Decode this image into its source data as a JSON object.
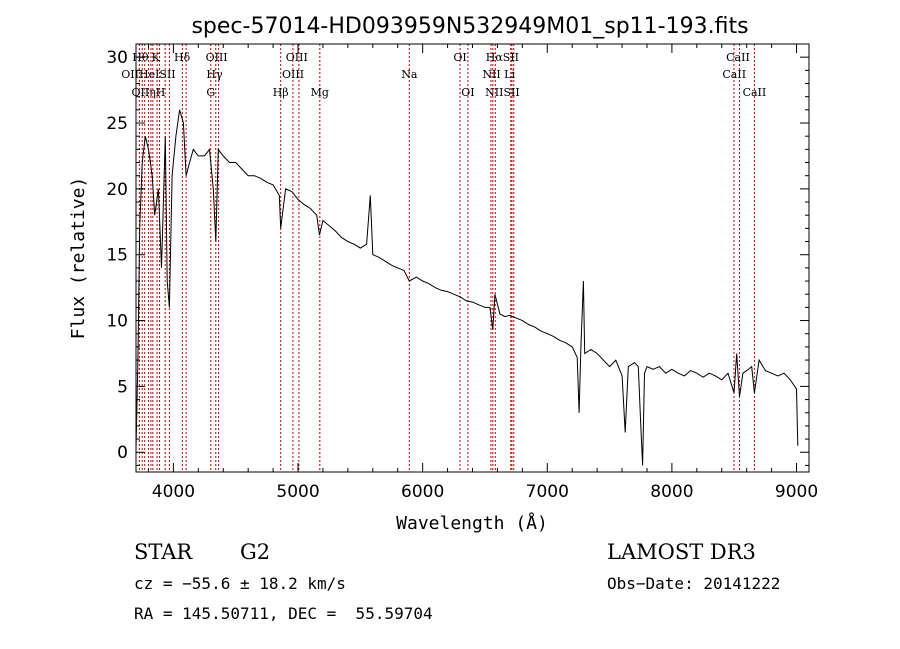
{
  "chart_data": {
    "type": "line",
    "title": "spec-57014-HD093959N532949M01_sp11-193.fits",
    "xlabel": "Wavelength (Å)",
    "ylabel": "Flux (relative)",
    "xlim": [
      3700,
      9100
    ],
    "ylim": [
      -1.5,
      31
    ],
    "xticks": [
      "4000",
      "5000",
      "6000",
      "7000",
      "8000",
      "9000"
    ],
    "xtick_values": [
      4000,
      5000,
      6000,
      7000,
      8000,
      9000
    ],
    "yticks": [
      "0",
      "5",
      "10",
      "15",
      "20",
      "25",
      "30"
    ],
    "ytick_values": [
      0,
      5,
      10,
      15,
      20,
      25,
      30
    ],
    "grid": false,
    "series": [
      {
        "points": [
          [
            3700,
            0.2
          ],
          [
            3715,
            7
          ],
          [
            3730,
            17
          ],
          [
            3750,
            22
          ],
          [
            3775,
            24
          ],
          [
            3800,
            23
          ],
          [
            3830,
            21
          ],
          [
            3850,
            18
          ],
          [
            3880,
            20
          ],
          [
            3905,
            14
          ],
          [
            3935,
            24
          ],
          [
            3950,
            13
          ],
          [
            3968,
            11
          ],
          [
            3990,
            21
          ],
          [
            4020,
            24
          ],
          [
            4050,
            26
          ],
          [
            4080,
            25
          ],
          [
            4102,
            21
          ],
          [
            4130,
            22
          ],
          [
            4160,
            23
          ],
          [
            4200,
            22.5
          ],
          [
            4250,
            22.5
          ],
          [
            4290,
            23
          ],
          [
            4320,
            20
          ],
          [
            4340,
            16
          ],
          [
            4360,
            23
          ],
          [
            4400,
            22.5
          ],
          [
            4450,
            22
          ],
          [
            4500,
            22
          ],
          [
            4550,
            21.5
          ],
          [
            4600,
            21
          ],
          [
            4650,
            21
          ],
          [
            4700,
            20.8
          ],
          [
            4750,
            20.5
          ],
          [
            4800,
            20.3
          ],
          [
            4850,
            19.5
          ],
          [
            4861,
            17
          ],
          [
            4900,
            20
          ],
          [
            4950,
            19.8
          ],
          [
            5000,
            19.2
          ],
          [
            5050,
            18.8
          ],
          [
            5100,
            18.5
          ],
          [
            5150,
            18
          ],
          [
            5172,
            16.5
          ],
          [
            5200,
            17.6
          ],
          [
            5250,
            17.2
          ],
          [
            5300,
            16.8
          ],
          [
            5350,
            16.3
          ],
          [
            5400,
            16
          ],
          [
            5450,
            15.8
          ],
          [
            5500,
            15.5
          ],
          [
            5550,
            15.8
          ],
          [
            5580,
            19.5
          ],
          [
            5600,
            15
          ],
          [
            5650,
            14.8
          ],
          [
            5700,
            14.5
          ],
          [
            5750,
            14.2
          ],
          [
            5800,
            14
          ],
          [
            5850,
            13.8
          ],
          [
            5893,
            13
          ],
          [
            5950,
            13.3
          ],
          [
            6000,
            13
          ],
          [
            6050,
            12.8
          ],
          [
            6100,
            12.5
          ],
          [
            6150,
            12.3
          ],
          [
            6200,
            12.2
          ],
          [
            6250,
            12
          ],
          [
            6300,
            11.8
          ],
          [
            6350,
            11.5
          ],
          [
            6400,
            11.4
          ],
          [
            6450,
            11.2
          ],
          [
            6500,
            11
          ],
          [
            6540,
            11
          ],
          [
            6563,
            9.3
          ],
          [
            6580,
            12
          ],
          [
            6620,
            10.5
          ],
          [
            6660,
            10.3
          ],
          [
            6700,
            10.4
          ],
          [
            6750,
            10.2
          ],
          [
            6800,
            10
          ],
          [
            6850,
            9.7
          ],
          [
            6900,
            9.5
          ],
          [
            6950,
            9.2
          ],
          [
            7000,
            9
          ],
          [
            7050,
            8.8
          ],
          [
            7100,
            8.5
          ],
          [
            7150,
            8.3
          ],
          [
            7200,
            8
          ],
          [
            7240,
            7.2
          ],
          [
            7255,
            3
          ],
          [
            7270,
            8
          ],
          [
            7290,
            13
          ],
          [
            7300,
            7.5
          ],
          [
            7350,
            7.8
          ],
          [
            7400,
            7.5
          ],
          [
            7450,
            7
          ],
          [
            7500,
            6.5
          ],
          [
            7550,
            7
          ],
          [
            7600,
            5.8
          ],
          [
            7625,
            1.5
          ],
          [
            7650,
            6.5
          ],
          [
            7700,
            6.8
          ],
          [
            7730,
            6.5
          ],
          [
            7750,
            2
          ],
          [
            7765,
            -1
          ],
          [
            7780,
            6
          ],
          [
            7800,
            6.5
          ],
          [
            7850,
            6.3
          ],
          [
            7900,
            6.5
          ],
          [
            7950,
            6
          ],
          [
            8000,
            6.3
          ],
          [
            8050,
            6
          ],
          [
            8100,
            5.8
          ],
          [
            8150,
            6.2
          ],
          [
            8200,
            6
          ],
          [
            8250,
            5.7
          ],
          [
            8300,
            6
          ],
          [
            8350,
            5.8
          ],
          [
            8400,
            5.5
          ],
          [
            8450,
            6
          ],
          [
            8498,
            4.5
          ],
          [
            8520,
            7.5
          ],
          [
            8542,
            4.2
          ],
          [
            8570,
            6
          ],
          [
            8600,
            6.2
          ],
          [
            8640,
            6.5
          ],
          [
            8662,
            4.5
          ],
          [
            8700,
            7
          ],
          [
            8750,
            6.2
          ],
          [
            8800,
            6
          ],
          [
            8850,
            5.8
          ],
          [
            8900,
            6
          ],
          [
            8950,
            5.5
          ],
          [
            9000,
            4.8
          ],
          [
            9010,
            0.5
          ]
        ]
      }
    ],
    "lines": [
      {
        "wavelength": 3727,
        "labels": [
          "OII"
        ]
      },
      {
        "wavelength": 3750,
        "labels": [
          "Hθ"
        ]
      },
      {
        "wavelength": 3770,
        "labels": [
          "OII"
        ]
      },
      {
        "wavelength": 3800,
        "labels": [
          "Hη"
        ]
      },
      {
        "wavelength": 3820,
        "labels": [
          "HeI"
        ]
      },
      {
        "wavelength": 3835,
        "labels": [
          "Hη"
        ]
      },
      {
        "wavelength": 3869,
        "labels": [
          "K"
        ]
      },
      {
        "wavelength": 3889,
        "labels": [
          "HeI"
        ]
      },
      {
        "wavelength": 3934,
        "labels": [
          "K"
        ]
      },
      {
        "wavelength": 3968,
        "labels": [
          "H"
        ]
      },
      {
        "wavelength": 4072,
        "labels": [
          "SII"
        ]
      },
      {
        "wavelength": 4102,
        "labels": [
          "Hδ"
        ]
      },
      {
        "wavelength": 4300,
        "labels": [
          "G"
        ]
      },
      {
        "wavelength": 4340,
        "labels": [
          "Hγ"
        ]
      },
      {
        "wavelength": 4363,
        "labels": [
          "OIII"
        ]
      },
      {
        "wavelength": 4861,
        "labels": [
          "Hβ"
        ]
      },
      {
        "wavelength": 4959,
        "labels": [
          "OIII"
        ]
      },
      {
        "wavelength": 5007,
        "labels": [
          "OIII"
        ]
      },
      {
        "wavelength": 5175,
        "labels": [
          "Mg"
        ]
      },
      {
        "wavelength": 5893,
        "labels": [
          "Na"
        ]
      },
      {
        "wavelength": 6300,
        "labels": [
          "OI"
        ]
      },
      {
        "wavelength": 6363,
        "labels": [
          "OI"
        ]
      },
      {
        "wavelength": 6548,
        "labels": [
          "NII"
        ]
      },
      {
        "wavelength": 6563,
        "labels": [
          "Hα"
        ]
      },
      {
        "wavelength": 6583,
        "labels": [
          "NII"
        ]
      },
      {
        "wavelength": 6707,
        "labels": [
          "Li"
        ]
      },
      {
        "wavelength": 6716,
        "labels": [
          "SII"
        ]
      },
      {
        "wavelength": 6731,
        "labels": [
          "SII"
        ]
      },
      {
        "wavelength": 8498,
        "labels": [
          "CaII"
        ]
      },
      {
        "wavelength": 8542,
        "labels": [
          "CaII"
        ]
      },
      {
        "wavelength": 8662,
        "labels": [
          "CaII"
        ]
      }
    ],
    "line_labels": [
      {
        "text": "Hθ",
        "wavelength": 3735,
        "row": 0
      },
      {
        "text": "K",
        "wavelength": 3858,
        "row": 0
      },
      {
        "text": "Hδ",
        "wavelength": 4070,
        "row": 0
      },
      {
        "text": "OIII",
        "wavelength": 4347,
        "row": 0
      },
      {
        "text": "OIII",
        "wavelength": 4990,
        "row": 0
      },
      {
        "text": "OI",
        "wavelength": 6300,
        "row": 0
      },
      {
        "text": "HαSII",
        "wavelength": 6640,
        "row": 0
      },
      {
        "text": "CaII",
        "wavelength": 8530,
        "row": 0
      },
      {
        "text": "OIIHeISII",
        "wavelength": 3800,
        "row": 1
      },
      {
        "text": "Hγ",
        "wavelength": 4330,
        "row": 1
      },
      {
        "text": "OIII",
        "wavelength": 4960,
        "row": 1
      },
      {
        "text": "Na",
        "wavelength": 5893,
        "row": 1
      },
      {
        "text": "NII Li",
        "wavelength": 6610,
        "row": 1
      },
      {
        "text": "CaII",
        "wavelength": 8500,
        "row": 1
      },
      {
        "text": "OIIηH",
        "wavelength": 3800,
        "row": 2
      },
      {
        "text": "G",
        "wavelength": 4300,
        "row": 2
      },
      {
        "text": "Hβ",
        "wavelength": 4861,
        "row": 2
      },
      {
        "text": "Mg",
        "wavelength": 5175,
        "row": 2
      },
      {
        "text": "OI",
        "wavelength": 6363,
        "row": 2
      },
      {
        "text": "NIISII",
        "wavelength": 6640,
        "row": 2
      },
      {
        "text": "CaII",
        "wavelength": 8662,
        "row": 2
      }
    ]
  },
  "info": {
    "object_class": "STAR",
    "subclass": "G2",
    "survey": "LAMOST DR3",
    "cz": "cz = −55.6 ± 18.2 km/s",
    "obs_date": "Obs−Date: 20141222",
    "coords": "RA = 145.50711, DEC =  55.59704"
  },
  "colors": {
    "spectrum": "#000000",
    "line_marker": "#c00000",
    "axis": "#000000"
  }
}
